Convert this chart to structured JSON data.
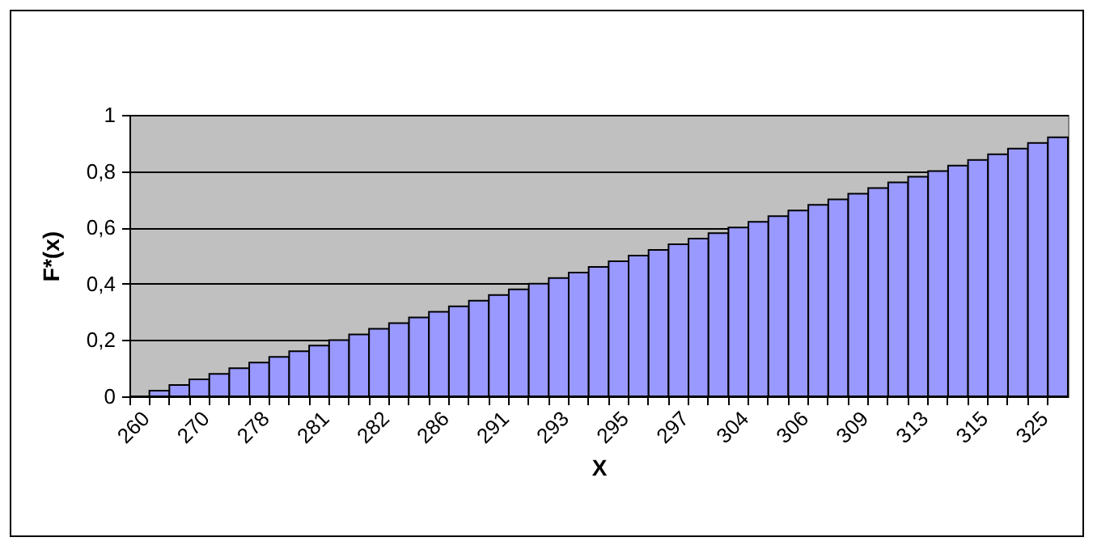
{
  "chart_data": {
    "type": "bar",
    "xlabel": "X",
    "ylabel": "F*(x)",
    "categories": [
      "260",
      null,
      null,
      "270",
      null,
      null,
      "278",
      null,
      null,
      "281",
      null,
      null,
      "282",
      null,
      null,
      "286",
      null,
      null,
      "291",
      null,
      null,
      "293",
      null,
      null,
      "295",
      null,
      null,
      "297",
      null,
      null,
      "304",
      null,
      null,
      "306",
      null,
      null,
      "309",
      null,
      null,
      "313",
      null,
      null,
      "315",
      null,
      null,
      "325",
      null
    ],
    "values": [
      0,
      0.02,
      0.04,
      0.06,
      0.08,
      0.1,
      0.12,
      0.14,
      0.16,
      0.18,
      0.2,
      0.22,
      0.24,
      0.26,
      0.28,
      0.3,
      0.32,
      0.34,
      0.36,
      0.38,
      0.4,
      0.42,
      0.44,
      0.46,
      0.48,
      0.5,
      0.52,
      0.54,
      0.56,
      0.58,
      0.6,
      0.62,
      0.64,
      0.66,
      0.68,
      0.7,
      0.72,
      0.74,
      0.76,
      0.78,
      0.8,
      0.82,
      0.84,
      0.86,
      0.88,
      0.9,
      0.92
    ],
    "color": "#9999ff",
    "ylim": [
      0,
      1
    ],
    "yticks": [
      0,
      {
        "value": 0.2,
        "label": "0,2"
      },
      {
        "value": 0.4,
        "label": "0,4"
      },
      {
        "value": 0.6,
        "label": "0,6"
      },
      {
        "value": 0.8,
        "label": "0,8"
      },
      1
    ],
    "grid": "y"
  }
}
